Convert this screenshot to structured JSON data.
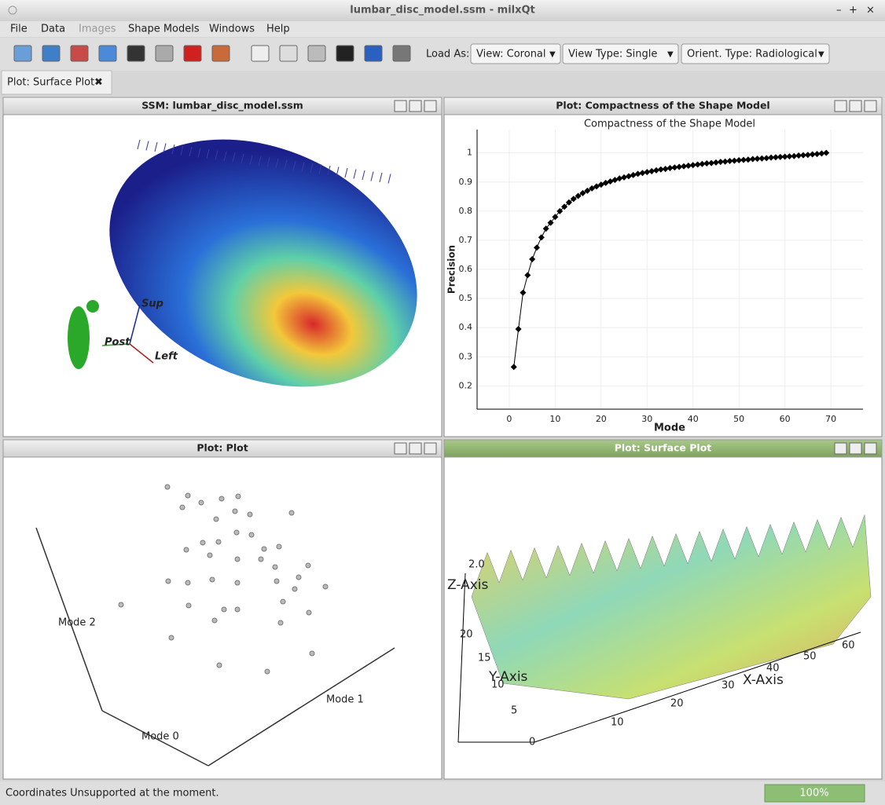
{
  "window": {
    "title": "lumbar_disc_model.ssm - milxQt"
  },
  "menu": [
    "File",
    "Data",
    "Images",
    "Shape Models",
    "Windows",
    "Help"
  ],
  "toolbar": {
    "load_as_label": "Load As:",
    "dropdowns": [
      "View: Coronal",
      "View Type: Single",
      "Orient. Type: Radiological"
    ]
  },
  "tab": "Plot: Surface Plot",
  "panels": [
    {
      "title": "SSM: lumbar_disc_model.ssm",
      "orientation_labels": [
        "Sup",
        "Post",
        "Left"
      ]
    },
    {
      "title": "Plot: Compactness of the Shape Model",
      "chart_data": {
        "type": "line",
        "title": "Compactness of the Shape Model",
        "xlabel": "Mode",
        "ylabel": "Precision",
        "color": "#000000",
        "grid": true,
        "x": [
          1,
          2,
          3,
          4,
          5,
          6,
          7,
          8,
          9,
          10,
          11,
          12,
          13,
          14,
          15,
          16,
          17,
          18,
          19,
          20,
          21,
          22,
          23,
          24,
          25,
          26,
          27,
          28,
          29,
          30,
          31,
          32,
          33,
          34,
          35,
          36,
          37,
          38,
          39,
          40,
          41,
          42,
          43,
          44,
          45,
          46,
          47,
          48,
          49,
          50,
          51,
          52,
          53,
          54,
          55,
          56,
          57,
          58,
          59,
          60,
          61,
          62,
          63,
          64,
          65,
          66,
          67,
          68,
          69
        ],
        "values": [
          0.265,
          0.395,
          0.52,
          0.58,
          0.635,
          0.675,
          0.71,
          0.74,
          0.76,
          0.78,
          0.8,
          0.815,
          0.83,
          0.842,
          0.852,
          0.862,
          0.87,
          0.878,
          0.885,
          0.891,
          0.897,
          0.902,
          0.907,
          0.912,
          0.916,
          0.92,
          0.924,
          0.928,
          0.931,
          0.934,
          0.937,
          0.94,
          0.943,
          0.945,
          0.948,
          0.95,
          0.952,
          0.954,
          0.956,
          0.958,
          0.96,
          0.962,
          0.964,
          0.965,
          0.967,
          0.969,
          0.97,
          0.972,
          0.973,
          0.975,
          0.976,
          0.977,
          0.979,
          0.98,
          0.981,
          0.982,
          0.984,
          0.985,
          0.986,
          0.987,
          0.988,
          0.989,
          0.991,
          0.992,
          0.993,
          0.995,
          0.996,
          0.998,
          1.0
        ],
        "xlim": [
          -7,
          77
        ],
        "ylim": [
          0.12,
          1.08
        ],
        "xticks": [
          0,
          10,
          20,
          30,
          40,
          50,
          60,
          70
        ],
        "yticks": [
          0.2,
          0.3,
          0.4,
          0.5,
          0.6,
          0.7,
          0.8,
          0.9,
          1
        ]
      }
    },
    {
      "title": "Plot: Plot",
      "axis_labels": [
        "Mode 0",
        "Mode 1",
        "Mode 2"
      ]
    },
    {
      "title": "Plot: Surface Plot",
      "axis_labels": [
        "X-Axis",
        "Y-Axis",
        "Z-Axis"
      ],
      "x_ticks": [
        "10",
        "20",
        "30",
        "40",
        "50",
        "60"
      ],
      "y_ticks": [
        "0",
        "5",
        "10",
        "15",
        "20"
      ],
      "z_ticks": [
        "2.0"
      ]
    }
  ],
  "status": {
    "message": "Coordinates Unsupported at the moment.",
    "progress": "100%"
  }
}
